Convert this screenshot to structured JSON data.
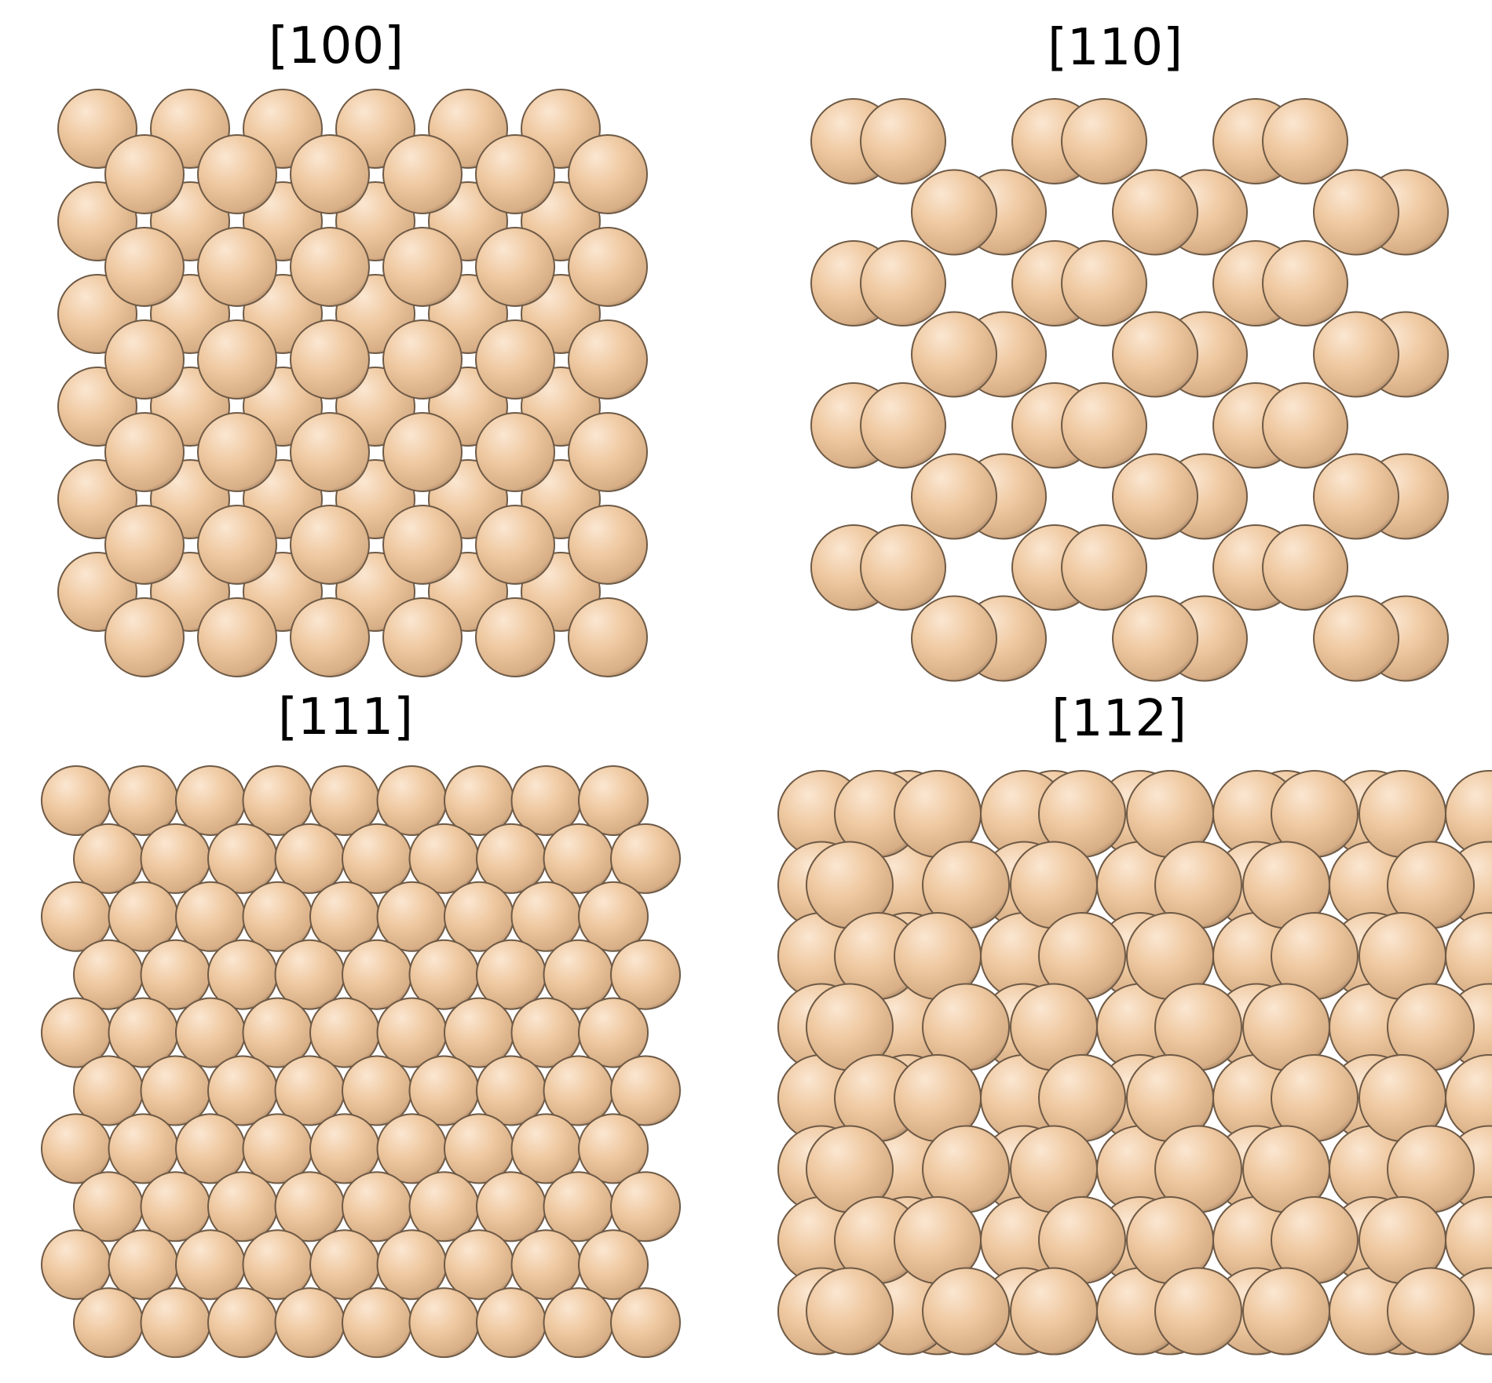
{
  "panels": [
    {
      "id": "p100",
      "title": "[100]"
    },
    {
      "id": "p110",
      "title": "[110]"
    },
    {
      "id": "p111",
      "title": "[111]"
    },
    {
      "id": "p112",
      "title": "[112]"
    }
  ],
  "atom_style": {
    "highlight_color": "#fbe7d2",
    "mid_color": "#efc9a1",
    "base_color": "#d7ae86",
    "edge_color": "#8b6f55",
    "outline_color": "#6e5a46"
  }
}
